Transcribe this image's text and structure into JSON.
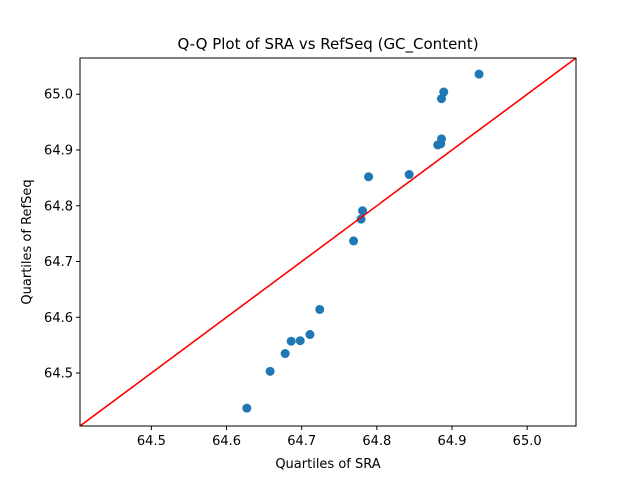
{
  "chart_data": {
    "type": "scatter",
    "title": "Q-Q Plot of SRA vs RefSeq (GC_Content)",
    "xlabel": "Quartiles of SRA",
    "ylabel": "Quartiles of RefSeq",
    "xlim": [
      64.405,
      65.065
    ],
    "ylim": [
      64.405,
      65.065
    ],
    "xticks": [
      64.5,
      64.6,
      64.7,
      64.8,
      64.9,
      65.0
    ],
    "yticks": [
      64.5,
      64.6,
      64.7,
      64.8,
      64.9,
      65.0
    ],
    "xtick_labels": [
      "64.5",
      "64.6",
      "64.7",
      "64.8",
      "64.9",
      "65.0"
    ],
    "ytick_labels": [
      "64.5",
      "64.6",
      "64.7",
      "64.8",
      "64.9",
      "65.0"
    ],
    "grid": false,
    "points_color": "#1f77b4",
    "reference_line_color": "#ff0000",
    "reference_line": {
      "slope": 1,
      "intercept": 0
    },
    "x": [
      64.627,
      64.658,
      64.678,
      64.686,
      64.698,
      64.711,
      64.724,
      64.769,
      64.779,
      64.781,
      64.789,
      64.843,
      64.881,
      64.885,
      64.886,
      64.886,
      64.889,
      64.936
    ],
    "y": [
      64.437,
      64.503,
      64.535,
      64.557,
      64.558,
      64.569,
      64.614,
      64.737,
      64.776,
      64.791,
      64.852,
      64.856,
      64.909,
      64.911,
      64.92,
      64.992,
      65.004,
      65.036
    ]
  }
}
